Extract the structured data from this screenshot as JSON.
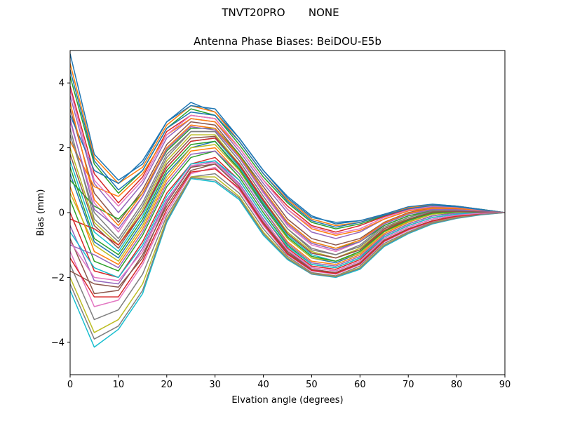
{
  "figure": {
    "suptitle": "TNVT20PRO       NONE"
  },
  "chart_data": {
    "type": "line",
    "title": "Antenna Phase Biases: BeiDOU-E5b",
    "xlabel": "Elvation angle (degrees)",
    "ylabel": "Bias (mm)",
    "xlim": [
      0,
      90
    ],
    "ylim": [
      -5,
      5
    ],
    "xticks": [
      0,
      10,
      20,
      30,
      40,
      50,
      60,
      70,
      80,
      90
    ],
    "yticks": [
      -4,
      -2,
      0,
      2,
      4
    ],
    "xtick_labels": [
      "0",
      "10",
      "20",
      "30",
      "40",
      "50",
      "60",
      "70",
      "80",
      "90"
    ],
    "ytick_labels": [
      "−4",
      "−2",
      "0",
      "2",
      "4"
    ],
    "grid": false,
    "legend": "none",
    "x": [
      0,
      5,
      10,
      15,
      20,
      25,
      30,
      35,
      40,
      45,
      50,
      55,
      60,
      65,
      70,
      75,
      80,
      85,
      90
    ],
    "color_cycle": [
      "#1f77b4",
      "#ff7f0e",
      "#2ca02c",
      "#d62728",
      "#9467bd",
      "#8c564b",
      "#e377c2",
      "#7f7f7f",
      "#bcbd22",
      "#17becf"
    ],
    "series": [
      {
        "values": [
          4.9,
          1.8,
          1.0,
          1.5,
          2.8,
          3.4,
          3.1,
          2.3,
          1.3,
          0.5,
          -0.1,
          -0.35,
          -0.25,
          -0.05,
          0.15,
          0.25,
          0.2,
          0.1,
          0.0
        ]
      },
      {
        "values": [
          4.6,
          1.7,
          0.9,
          1.4,
          2.7,
          3.3,
          3.1,
          2.2,
          1.2,
          0.4,
          -0.2,
          -0.4,
          -0.3,
          -0.05,
          0.15,
          0.25,
          0.2,
          0.1,
          0.0
        ]
      },
      {
        "values": [
          4.2,
          1.5,
          0.6,
          1.3,
          2.6,
          3.2,
          3.0,
          2.1,
          1.1,
          0.3,
          -0.3,
          -0.5,
          -0.35,
          -0.1,
          0.1,
          0.2,
          0.18,
          0.1,
          0.0
        ]
      },
      {
        "values": [
          3.9,
          1.2,
          0.3,
          1.1,
          2.5,
          3.0,
          2.9,
          2.0,
          1.0,
          0.2,
          -0.4,
          -0.6,
          -0.4,
          -0.12,
          0.1,
          0.2,
          0.18,
          0.08,
          0.0
        ]
      },
      {
        "values": [
          3.6,
          0.9,
          0.0,
          0.9,
          2.3,
          2.9,
          2.8,
          1.9,
          0.9,
          0.0,
          -0.6,
          -0.8,
          -0.6,
          -0.2,
          0.05,
          0.18,
          0.15,
          0.08,
          0.0
        ]
      },
      {
        "values": [
          3.2,
          0.6,
          -0.3,
          0.7,
          2.1,
          2.8,
          2.7,
          1.8,
          0.8,
          -0.2,
          -0.8,
          -1.0,
          -0.8,
          -0.3,
          0.0,
          0.15,
          0.12,
          0.06,
          0.0
        ]
      },
      {
        "values": [
          2.8,
          0.3,
          -0.6,
          0.5,
          2.0,
          2.7,
          2.6,
          1.7,
          0.6,
          -0.4,
          -1.0,
          -1.2,
          -0.9,
          -0.35,
          -0.05,
          0.1,
          0.1,
          0.05,
          0.0
        ]
      },
      {
        "values": [
          2.4,
          0.0,
          -0.8,
          0.3,
          1.8,
          2.5,
          2.5,
          1.6,
          0.5,
          -0.5,
          -1.1,
          -1.3,
          -1.0,
          -0.4,
          -0.1,
          0.08,
          0.08,
          0.04,
          0.0
        ]
      },
      {
        "values": [
          2.0,
          -0.3,
          -1.0,
          0.1,
          1.6,
          2.4,
          2.4,
          1.5,
          0.4,
          -0.6,
          -1.2,
          -1.4,
          -1.1,
          -0.5,
          -0.15,
          0.05,
          0.06,
          0.03,
          0.0
        ]
      },
      {
        "values": [
          1.6,
          -0.6,
          -1.2,
          -0.1,
          1.4,
          2.2,
          2.3,
          1.4,
          0.3,
          -0.7,
          -1.3,
          -1.5,
          -1.2,
          -0.55,
          -0.2,
          0.02,
          0.05,
          0.02,
          0.0
        ]
      },
      {
        "values": [
          1.2,
          -0.9,
          -1.4,
          -0.3,
          1.2,
          2.0,
          2.2,
          1.3,
          0.2,
          -0.8,
          -1.4,
          -1.55,
          -1.25,
          -0.6,
          -0.25,
          0.0,
          0.04,
          0.02,
          0.0
        ]
      },
      {
        "values": [
          0.8,
          -1.2,
          -1.6,
          -0.5,
          1.0,
          1.9,
          2.0,
          1.2,
          0.1,
          -0.9,
          -1.5,
          -1.6,
          -1.3,
          -0.65,
          -0.3,
          -0.05,
          0.02,
          0.01,
          0.0
        ]
      },
      {
        "values": [
          0.4,
          -1.5,
          -1.8,
          -0.7,
          0.8,
          1.7,
          1.9,
          1.1,
          0.0,
          -1.0,
          -1.6,
          -1.7,
          -1.4,
          -0.7,
          -0.35,
          -0.1,
          0.0,
          0.0,
          0.0
        ]
      },
      {
        "values": [
          0.0,
          -1.8,
          -2.0,
          -0.9,
          0.6,
          1.5,
          1.7,
          1.0,
          -0.1,
          -1.1,
          -1.65,
          -1.75,
          -1.45,
          -0.75,
          -0.4,
          -0.15,
          -0.05,
          0.0,
          0.0
        ]
      },
      {
        "values": [
          -0.4,
          -2.1,
          -2.2,
          -1.1,
          0.4,
          1.4,
          1.6,
          0.9,
          -0.2,
          -1.2,
          -1.7,
          -1.8,
          -1.5,
          -0.8,
          -0.45,
          -0.2,
          -0.08,
          -0.02,
          0.0
        ]
      },
      {
        "values": [
          -0.8,
          -2.5,
          -2.4,
          -1.3,
          0.2,
          1.3,
          1.5,
          0.8,
          -0.3,
          -1.25,
          -1.75,
          -1.85,
          -1.55,
          -0.85,
          -0.5,
          -0.25,
          -0.1,
          -0.03,
          0.0
        ]
      },
      {
        "values": [
          -1.2,
          -2.9,
          -2.7,
          -1.6,
          0.0,
          1.2,
          1.4,
          0.7,
          -0.4,
          -1.3,
          -1.8,
          -1.9,
          -1.6,
          -0.9,
          -0.55,
          -0.28,
          -0.12,
          -0.04,
          0.0
        ]
      },
      {
        "values": [
          -1.6,
          -3.3,
          -3.0,
          -1.9,
          -0.1,
          1.1,
          1.2,
          0.6,
          -0.5,
          -1.35,
          -1.85,
          -1.95,
          -1.65,
          -0.95,
          -0.6,
          -0.3,
          -0.15,
          -0.05,
          0.0
        ]
      },
      {
        "values": [
          -2.0,
          -3.7,
          -3.3,
          -2.2,
          -0.2,
          1.1,
          1.1,
          0.5,
          -0.6,
          -1.4,
          -1.88,
          -1.97,
          -1.7,
          -1.0,
          -0.62,
          -0.32,
          -0.16,
          -0.06,
          0.0
        ]
      },
      {
        "values": [
          -2.4,
          -4.15,
          -3.6,
          -2.5,
          -0.3,
          1.05,
          0.95,
          0.4,
          -0.7,
          -1.45,
          -1.9,
          -2.0,
          -1.75,
          -1.05,
          -0.65,
          -0.35,
          -0.18,
          -0.07,
          0.0
        ]
      },
      {
        "values": [
          3.0,
          1.3,
          0.9,
          1.6,
          2.8,
          3.3,
          3.2,
          2.3,
          1.3,
          0.45,
          -0.15,
          -0.3,
          -0.25,
          -0.05,
          0.18,
          0.26,
          0.2,
          0.1,
          0.0
        ]
      },
      {
        "values": [
          2.2,
          0.8,
          0.5,
          1.2,
          2.4,
          2.9,
          2.8,
          2.0,
          1.0,
          0.1,
          -0.5,
          -0.7,
          -0.55,
          -0.2,
          0.05,
          0.15,
          0.14,
          0.07,
          0.0
        ]
      },
      {
        "values": [
          1.0,
          0.2,
          -0.2,
          0.6,
          1.9,
          2.6,
          2.6,
          1.8,
          0.7,
          -0.3,
          -0.9,
          -1.1,
          -0.9,
          -0.4,
          -0.1,
          0.05,
          0.06,
          0.03,
          0.0
        ]
      },
      {
        "values": [
          -0.2,
          -0.5,
          -1.0,
          0.0,
          1.4,
          2.2,
          2.3,
          1.5,
          0.4,
          -0.65,
          -1.25,
          -1.4,
          -1.15,
          -0.55,
          -0.22,
          0.0,
          0.03,
          0.01,
          0.0
        ]
      },
      {
        "values": [
          -1.0,
          -1.3,
          -1.7,
          -0.6,
          0.9,
          1.8,
          1.9,
          1.2,
          0.1,
          -0.95,
          -1.55,
          -1.65,
          -1.35,
          -0.7,
          -0.35,
          -0.1,
          -0.02,
          0.0,
          0.0
        ]
      },
      {
        "values": [
          -1.8,
          -2.2,
          -2.3,
          -1.4,
          0.3,
          1.4,
          1.5,
          0.8,
          -0.3,
          -1.2,
          -1.75,
          -1.85,
          -1.55,
          -0.85,
          -0.5,
          -0.25,
          -0.1,
          -0.03,
          0.0
        ]
      },
      {
        "values": [
          3.8,
          1.0,
          0.2,
          1.0,
          2.4,
          3.0,
          2.9,
          2.0,
          1.0,
          0.1,
          -0.45,
          -0.65,
          -0.5,
          -0.15,
          0.08,
          0.2,
          0.17,
          0.08,
          0.0
        ]
      },
      {
        "values": [
          2.6,
          -0.2,
          -0.9,
          0.2,
          1.7,
          2.5,
          2.5,
          1.6,
          0.5,
          -0.5,
          -1.15,
          -1.3,
          -1.05,
          -0.45,
          -0.15,
          0.05,
          0.07,
          0.03,
          0.0
        ]
      },
      {
        "values": [
          0.6,
          -1.0,
          -1.5,
          -0.4,
          1.1,
          2.0,
          2.1,
          1.3,
          0.25,
          -0.8,
          -1.4,
          -1.5,
          -1.25,
          -0.6,
          -0.28,
          -0.05,
          0.02,
          0.01,
          0.0
        ]
      },
      {
        "values": [
          -0.6,
          -1.7,
          -2.0,
          -1.0,
          0.5,
          1.5,
          1.6,
          1.0,
          -0.1,
          -1.05,
          -1.6,
          -1.7,
          -1.4,
          -0.75,
          -0.4,
          -0.15,
          -0.05,
          -0.01,
          0.0
        ]
      },
      {
        "values": [
          4.4,
          1.6,
          0.7,
          1.3,
          2.6,
          3.1,
          3.0,
          2.2,
          1.2,
          0.35,
          -0.25,
          -0.45,
          -0.3,
          -0.08,
          0.12,
          0.22,
          0.18,
          0.09,
          0.0
        ]
      },
      {
        "values": [
          3.4,
          0.4,
          -0.4,
          0.6,
          2.0,
          2.7,
          2.6,
          1.75,
          0.7,
          -0.3,
          -0.9,
          -1.1,
          -0.85,
          -0.32,
          -0.02,
          0.12,
          0.1,
          0.05,
          0.0
        ]
      },
      {
        "values": [
          1.4,
          -0.8,
          -1.3,
          -0.2,
          1.3,
          2.1,
          2.2,
          1.35,
          0.25,
          -0.75,
          -1.35,
          -1.5,
          -1.2,
          -0.58,
          -0.24,
          -0.02,
          0.03,
          0.01,
          0.0
        ]
      },
      {
        "values": [
          -1.4,
          -2.6,
          -2.6,
          -1.5,
          0.1,
          1.25,
          1.35,
          0.75,
          -0.35,
          -1.28,
          -1.78,
          -1.88,
          -1.58,
          -0.88,
          -0.52,
          -0.26,
          -0.11,
          -0.04,
          0.0
        ]
      },
      {
        "values": [
          2.9,
          0.1,
          -0.5,
          0.5,
          1.95,
          2.65,
          2.55,
          1.7,
          0.65,
          -0.35,
          -0.95,
          -1.15,
          -0.9,
          -0.35,
          -0.05,
          0.1,
          0.09,
          0.04,
          0.0
        ]
      },
      {
        "values": [
          1.8,
          -0.4,
          -1.1,
          0.0,
          1.5,
          2.3,
          2.35,
          1.45,
          0.35,
          -0.65,
          -1.25,
          -1.4,
          -1.15,
          -0.5,
          -0.2,
          0.02,
          0.04,
          0.02,
          0.0
        ]
      },
      {
        "values": [
          -0.9,
          -2.0,
          -2.1,
          -1.2,
          0.35,
          1.45,
          1.55,
          0.85,
          -0.25,
          -1.15,
          -1.7,
          -1.8,
          -1.5,
          -0.8,
          -0.45,
          -0.2,
          -0.08,
          -0.02,
          0.0
        ]
      },
      {
        "values": [
          -2.2,
          -3.9,
          -3.5,
          -2.4,
          -0.25,
          1.08,
          1.0,
          0.45,
          -0.65,
          -1.42,
          -1.89,
          -1.98,
          -1.72,
          -1.02,
          -0.63,
          -0.33,
          -0.17,
          -0.06,
          0.0
        ]
      }
    ]
  }
}
